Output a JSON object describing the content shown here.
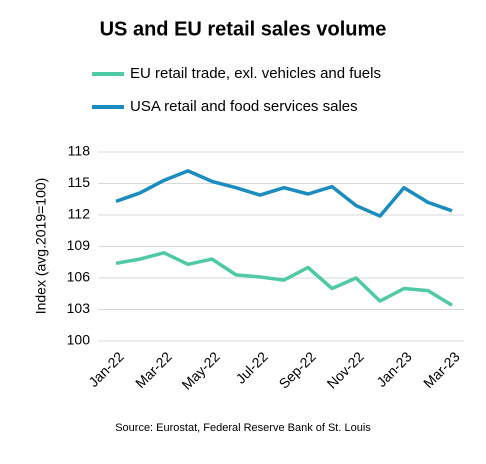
{
  "chart_data": {
    "type": "line",
    "title": "US and EU retail sales volume",
    "y_label": "Index (avg.2019=100)",
    "source": "Source: Eurostat, Federal Reserve Bank of St. Louis",
    "categories": [
      "Jan-22",
      null,
      "Mar-22",
      null,
      "May-22",
      null,
      "Jul-22",
      null,
      "Sep-22",
      null,
      "Nov-22",
      null,
      "Jan-23",
      null,
      "Mar-23"
    ],
    "series": [
      {
        "name": "EU retail trade, exl. vehicles and fuels",
        "color": "#4fc9a6",
        "values": [
          107.4,
          107.8,
          108.4,
          107.3,
          107.8,
          106.3,
          106.1,
          105.8,
          107.0,
          105.0,
          106.0,
          103.8,
          105.0,
          104.8,
          103.4
        ]
      },
      {
        "name": "USA retail and food services sales",
        "color": "#1a8cbf",
        "values": [
          113.3,
          114.1,
          115.3,
          116.2,
          115.2,
          114.6,
          113.9,
          114.6,
          114.0,
          114.7,
          112.9,
          111.9,
          114.6,
          113.2,
          112.4
        ]
      }
    ],
    "ylim": [
      100,
      118
    ],
    "yticks": [
      100,
      103,
      106,
      109,
      112,
      115,
      118
    ],
    "grid": true
  }
}
